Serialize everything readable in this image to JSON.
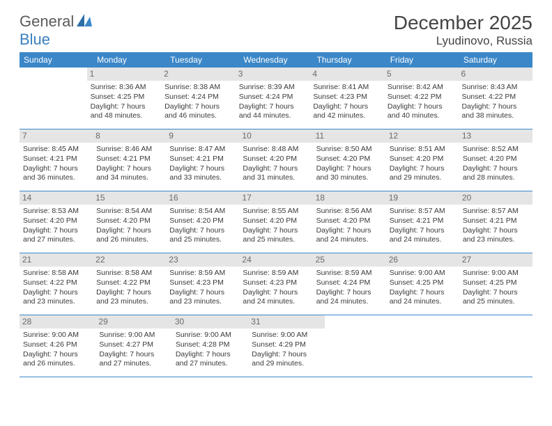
{
  "logo": {
    "text1": "General",
    "text2": "Blue"
  },
  "title": "December 2025",
  "location": "Lyudinovo, Russia",
  "weekdays": [
    "Sunday",
    "Monday",
    "Tuesday",
    "Wednesday",
    "Thursday",
    "Friday",
    "Saturday"
  ],
  "colors": {
    "header_bg": "#3b87c8",
    "day_number_bg": "#e5e5e5",
    "border": "#3b87c8",
    "logo_blue": "#3b7fbf"
  },
  "weeks": [
    {
      "days": [
        null,
        {
          "num": "1",
          "sunrise": "Sunrise: 8:36 AM",
          "sunset": "Sunset: 4:25 PM",
          "d1": "Daylight: 7 hours",
          "d2": "and 48 minutes."
        },
        {
          "num": "2",
          "sunrise": "Sunrise: 8:38 AM",
          "sunset": "Sunset: 4:24 PM",
          "d1": "Daylight: 7 hours",
          "d2": "and 46 minutes."
        },
        {
          "num": "3",
          "sunrise": "Sunrise: 8:39 AM",
          "sunset": "Sunset: 4:24 PM",
          "d1": "Daylight: 7 hours",
          "d2": "and 44 minutes."
        },
        {
          "num": "4",
          "sunrise": "Sunrise: 8:41 AM",
          "sunset": "Sunset: 4:23 PM",
          "d1": "Daylight: 7 hours",
          "d2": "and 42 minutes."
        },
        {
          "num": "5",
          "sunrise": "Sunrise: 8:42 AM",
          "sunset": "Sunset: 4:22 PM",
          "d1": "Daylight: 7 hours",
          "d2": "and 40 minutes."
        },
        {
          "num": "6",
          "sunrise": "Sunrise: 8:43 AM",
          "sunset": "Sunset: 4:22 PM",
          "d1": "Daylight: 7 hours",
          "d2": "and 38 minutes."
        }
      ]
    },
    {
      "days": [
        {
          "num": "7",
          "sunrise": "Sunrise: 8:45 AM",
          "sunset": "Sunset: 4:21 PM",
          "d1": "Daylight: 7 hours",
          "d2": "and 36 minutes."
        },
        {
          "num": "8",
          "sunrise": "Sunrise: 8:46 AM",
          "sunset": "Sunset: 4:21 PM",
          "d1": "Daylight: 7 hours",
          "d2": "and 34 minutes."
        },
        {
          "num": "9",
          "sunrise": "Sunrise: 8:47 AM",
          "sunset": "Sunset: 4:21 PM",
          "d1": "Daylight: 7 hours",
          "d2": "and 33 minutes."
        },
        {
          "num": "10",
          "sunrise": "Sunrise: 8:48 AM",
          "sunset": "Sunset: 4:20 PM",
          "d1": "Daylight: 7 hours",
          "d2": "and 31 minutes."
        },
        {
          "num": "11",
          "sunrise": "Sunrise: 8:50 AM",
          "sunset": "Sunset: 4:20 PM",
          "d1": "Daylight: 7 hours",
          "d2": "and 30 minutes."
        },
        {
          "num": "12",
          "sunrise": "Sunrise: 8:51 AM",
          "sunset": "Sunset: 4:20 PM",
          "d1": "Daylight: 7 hours",
          "d2": "and 29 minutes."
        },
        {
          "num": "13",
          "sunrise": "Sunrise: 8:52 AM",
          "sunset": "Sunset: 4:20 PM",
          "d1": "Daylight: 7 hours",
          "d2": "and 28 minutes."
        }
      ]
    },
    {
      "days": [
        {
          "num": "14",
          "sunrise": "Sunrise: 8:53 AM",
          "sunset": "Sunset: 4:20 PM",
          "d1": "Daylight: 7 hours",
          "d2": "and 27 minutes."
        },
        {
          "num": "15",
          "sunrise": "Sunrise: 8:54 AM",
          "sunset": "Sunset: 4:20 PM",
          "d1": "Daylight: 7 hours",
          "d2": "and 26 minutes."
        },
        {
          "num": "16",
          "sunrise": "Sunrise: 8:54 AM",
          "sunset": "Sunset: 4:20 PM",
          "d1": "Daylight: 7 hours",
          "d2": "and 25 minutes."
        },
        {
          "num": "17",
          "sunrise": "Sunrise: 8:55 AM",
          "sunset": "Sunset: 4:20 PM",
          "d1": "Daylight: 7 hours",
          "d2": "and 25 minutes."
        },
        {
          "num": "18",
          "sunrise": "Sunrise: 8:56 AM",
          "sunset": "Sunset: 4:20 PM",
          "d1": "Daylight: 7 hours",
          "d2": "and 24 minutes."
        },
        {
          "num": "19",
          "sunrise": "Sunrise: 8:57 AM",
          "sunset": "Sunset: 4:21 PM",
          "d1": "Daylight: 7 hours",
          "d2": "and 24 minutes."
        },
        {
          "num": "20",
          "sunrise": "Sunrise: 8:57 AM",
          "sunset": "Sunset: 4:21 PM",
          "d1": "Daylight: 7 hours",
          "d2": "and 23 minutes."
        }
      ]
    },
    {
      "days": [
        {
          "num": "21",
          "sunrise": "Sunrise: 8:58 AM",
          "sunset": "Sunset: 4:22 PM",
          "d1": "Daylight: 7 hours",
          "d2": "and 23 minutes."
        },
        {
          "num": "22",
          "sunrise": "Sunrise: 8:58 AM",
          "sunset": "Sunset: 4:22 PM",
          "d1": "Daylight: 7 hours",
          "d2": "and 23 minutes."
        },
        {
          "num": "23",
          "sunrise": "Sunrise: 8:59 AM",
          "sunset": "Sunset: 4:23 PM",
          "d1": "Daylight: 7 hours",
          "d2": "and 23 minutes."
        },
        {
          "num": "24",
          "sunrise": "Sunrise: 8:59 AM",
          "sunset": "Sunset: 4:23 PM",
          "d1": "Daylight: 7 hours",
          "d2": "and 24 minutes."
        },
        {
          "num": "25",
          "sunrise": "Sunrise: 8:59 AM",
          "sunset": "Sunset: 4:24 PM",
          "d1": "Daylight: 7 hours",
          "d2": "and 24 minutes."
        },
        {
          "num": "26",
          "sunrise": "Sunrise: 9:00 AM",
          "sunset": "Sunset: 4:25 PM",
          "d1": "Daylight: 7 hours",
          "d2": "and 24 minutes."
        },
        {
          "num": "27",
          "sunrise": "Sunrise: 9:00 AM",
          "sunset": "Sunset: 4:25 PM",
          "d1": "Daylight: 7 hours",
          "d2": "and 25 minutes."
        }
      ]
    },
    {
      "days": [
        {
          "num": "28",
          "sunrise": "Sunrise: 9:00 AM",
          "sunset": "Sunset: 4:26 PM",
          "d1": "Daylight: 7 hours",
          "d2": "and 26 minutes."
        },
        {
          "num": "29",
          "sunrise": "Sunrise: 9:00 AM",
          "sunset": "Sunset: 4:27 PM",
          "d1": "Daylight: 7 hours",
          "d2": "and 27 minutes."
        },
        {
          "num": "30",
          "sunrise": "Sunrise: 9:00 AM",
          "sunset": "Sunset: 4:28 PM",
          "d1": "Daylight: 7 hours",
          "d2": "and 27 minutes."
        },
        {
          "num": "31",
          "sunrise": "Sunrise: 9:00 AM",
          "sunset": "Sunset: 4:29 PM",
          "d1": "Daylight: 7 hours",
          "d2": "and 29 minutes."
        },
        null,
        null,
        null
      ]
    }
  ]
}
